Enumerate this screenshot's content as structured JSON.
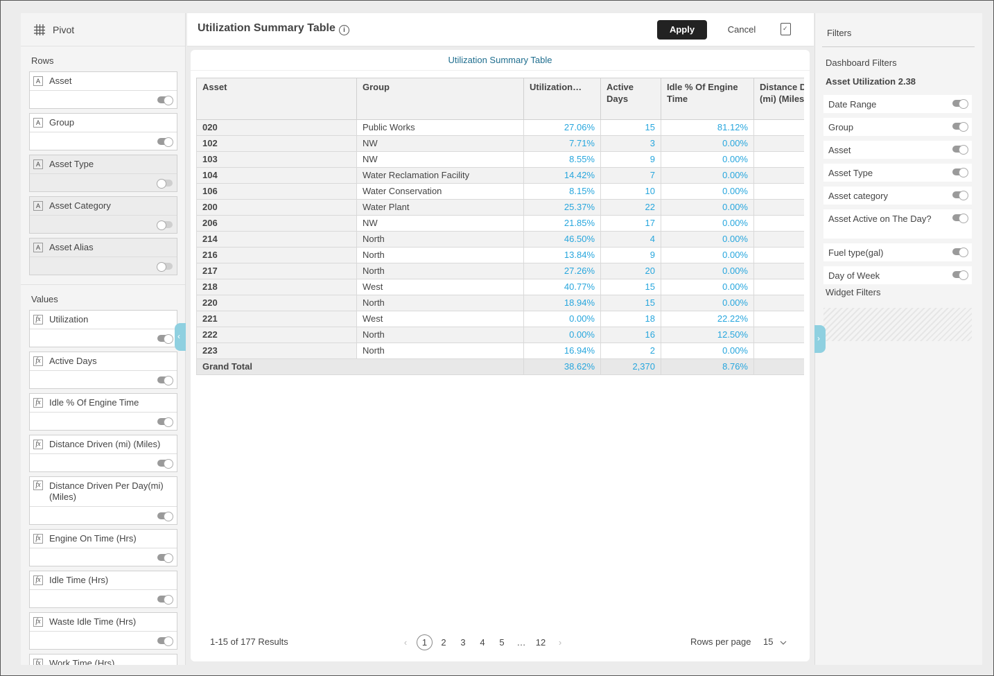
{
  "left": {
    "title": "Pivot",
    "rows_title": "Rows",
    "rows": [
      {
        "label": "Asset",
        "badge": "A",
        "enabled": true,
        "disabled_style": false
      },
      {
        "label": "Group",
        "badge": "A",
        "enabled": true,
        "disabled_style": false
      },
      {
        "label": "Asset Type",
        "badge": "A",
        "enabled": false,
        "disabled_style": true
      },
      {
        "label": "Asset Category",
        "badge": "A",
        "enabled": false,
        "disabled_style": true
      },
      {
        "label": "Asset Alias",
        "badge": "A",
        "enabled": false,
        "disabled_style": true
      }
    ],
    "values_title": "Values",
    "values": [
      {
        "label": "Utilization",
        "badge": "fx",
        "enabled": true
      },
      {
        "label": "Active Days",
        "badge": "fx",
        "enabled": true
      },
      {
        "label": "Idle % Of Engine Time",
        "badge": "fx",
        "enabled": true
      },
      {
        "label": "Distance Driven (mi) (Miles)",
        "badge": "fx",
        "enabled": true
      },
      {
        "label": "Distance Driven Per Day(mi) (Miles)",
        "badge": "fx",
        "enabled": true,
        "tall": true
      },
      {
        "label": "Engine On Time (Hrs)",
        "badge": "fx",
        "enabled": true
      },
      {
        "label": "Idle Time (Hrs)",
        "badge": "fx",
        "enabled": true
      },
      {
        "label": "Waste Idle Time (Hrs)",
        "badge": "fx",
        "enabled": true
      },
      {
        "label": "Work Time (Hrs)",
        "badge": "fx",
        "enabled": true
      }
    ]
  },
  "header": {
    "title": "Utilization Summary Table",
    "info": "i",
    "apply": "Apply",
    "cancel": "Cancel"
  },
  "widget": {
    "title": "Utilization Summary Table",
    "columns": [
      "Asset",
      "Group",
      "Utilization…",
      "Active Days",
      "Idle % Of Engine Time",
      "Distance D (mi) (Miles"
    ],
    "rows": [
      [
        "020",
        "Public Works",
        "27.06%",
        "15",
        "81.12%",
        ""
      ],
      [
        "102",
        "NW",
        "7.71%",
        "3",
        "0.00%",
        ""
      ],
      [
        "103",
        "NW",
        "8.55%",
        "9",
        "0.00%",
        ""
      ],
      [
        "104",
        "Water Reclamation Facility",
        "14.42%",
        "7",
        "0.00%",
        ""
      ],
      [
        "106",
        "Water Conservation",
        "8.15%",
        "10",
        "0.00%",
        ""
      ],
      [
        "200",
        "Water Plant",
        "25.37%",
        "22",
        "0.00%",
        ""
      ],
      [
        "206",
        "NW",
        "21.85%",
        "17",
        "0.00%",
        ""
      ],
      [
        "214",
        "North",
        "46.50%",
        "4",
        "0.00%",
        ""
      ],
      [
        "216",
        "North",
        "13.84%",
        "9",
        "0.00%",
        ""
      ],
      [
        "217",
        "North",
        "27.26%",
        "20",
        "0.00%",
        ""
      ],
      [
        "218",
        "West",
        "40.77%",
        "15",
        "0.00%",
        ""
      ],
      [
        "220",
        "North",
        "18.94%",
        "15",
        "0.00%",
        ""
      ],
      [
        "221",
        "West",
        "0.00%",
        "18",
        "22.22%",
        ""
      ],
      [
        "222",
        "North",
        "0.00%",
        "16",
        "12.50%",
        ""
      ],
      [
        "223",
        "North",
        "16.94%",
        "2",
        "0.00%",
        ""
      ]
    ],
    "total": [
      "Grand Total",
      "38.62%",
      "2,370",
      "8.76%",
      ""
    ]
  },
  "pager": {
    "results": "1-15 of 177 Results",
    "prev": "‹",
    "pages": [
      "1",
      "2",
      "3",
      "4",
      "5",
      "…",
      "12"
    ],
    "next": "›",
    "rows_per_page_label": "Rows per page",
    "rows_per_page": "15"
  },
  "filters": {
    "title": "Filters",
    "dashboard_title": "Dashboard Filters",
    "dashboard_name": "Asset Utilization 2.38",
    "items": [
      {
        "label": "Date Range"
      },
      {
        "label": "Group"
      },
      {
        "label": "Asset"
      },
      {
        "label": "Asset Type"
      },
      {
        "label": "Asset category"
      },
      {
        "label": "Asset Active on The Day?",
        "tall": true
      },
      {
        "label": "Fuel type(gal)"
      },
      {
        "label": "Day of Week"
      }
    ],
    "widget_title": "Widget Filters"
  }
}
